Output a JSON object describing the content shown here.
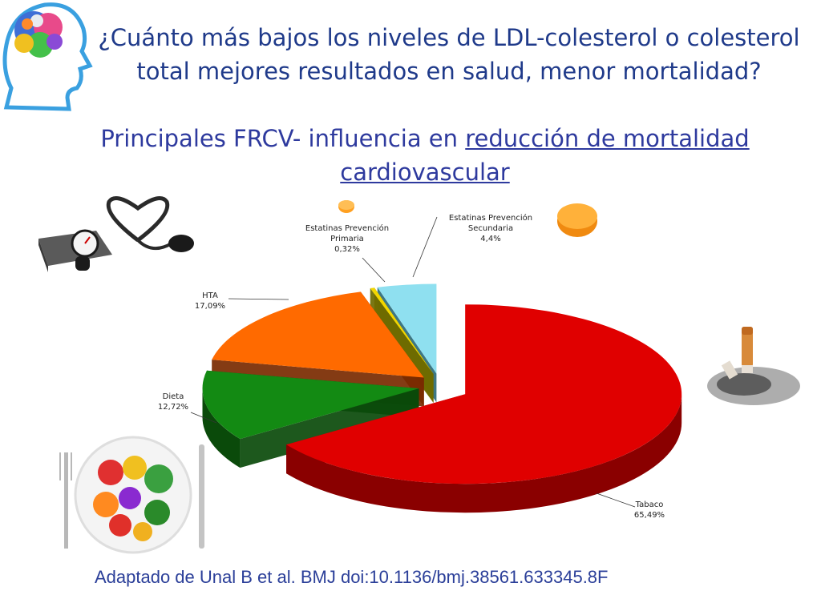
{
  "title": "¿Cuánto más bajos los niveles de LDL-colesterol o colesterol total mejores resultados en salud, menor mortalidad?",
  "subtitle_prefix": "Principales FRCV- influencia en ",
  "subtitle_underlined": "reducción de mortalidad cardiovascular",
  "citation": "Adaptado de Unal B et al. BMJ doi:10.1136/bmj.38561.633345.8F",
  "chart_data": {
    "type": "pie",
    "title": "",
    "series": [
      {
        "name": "Tabaco",
        "value": 65.49,
        "label": "65,49%",
        "color": "#e00000",
        "side_color": "#8a0000"
      },
      {
        "name": "Dieta",
        "value": 12.72,
        "label": "12,72%",
        "color": "#138a13",
        "side_color": "#0a4a0a"
      },
      {
        "name": "HTA",
        "value": 17.09,
        "label": "17,09%",
        "color": "#ff6a00",
        "side_color": "#7a2a00"
      },
      {
        "name": "Estatinas Prevención Primaria",
        "value": 0.32,
        "label": "0,32%",
        "color": "#f2d600",
        "side_color": "#6f6b00"
      },
      {
        "name": "Estatinas Prevención Secundaria",
        "value": 4.4,
        "label": "4,4%",
        "color": "#8fe0f0",
        "side_color": "#2c6b7a"
      }
    ],
    "labels": [
      {
        "lines": [
          "Tabaco",
          "65,49%"
        ]
      },
      {
        "lines": [
          "Dieta",
          "12,72%"
        ]
      },
      {
        "lines": [
          "HTA",
          "17,09%"
        ]
      },
      {
        "lines": [
          "Estatinas Prevención",
          "Primaria",
          "0,32%"
        ]
      },
      {
        "lines": [
          "Estatinas Prevención",
          "Secundaria",
          "4,4%"
        ]
      }
    ]
  },
  "icons": {
    "brain": "brain-head-icon",
    "stethoscope": "blood-pressure-monitor-icon",
    "pill_small": "pill-small-icon",
    "pill_large": "pill-large-icon",
    "cigarette": "cigarette-ashtray-icon",
    "food": "food-plate-icon"
  }
}
